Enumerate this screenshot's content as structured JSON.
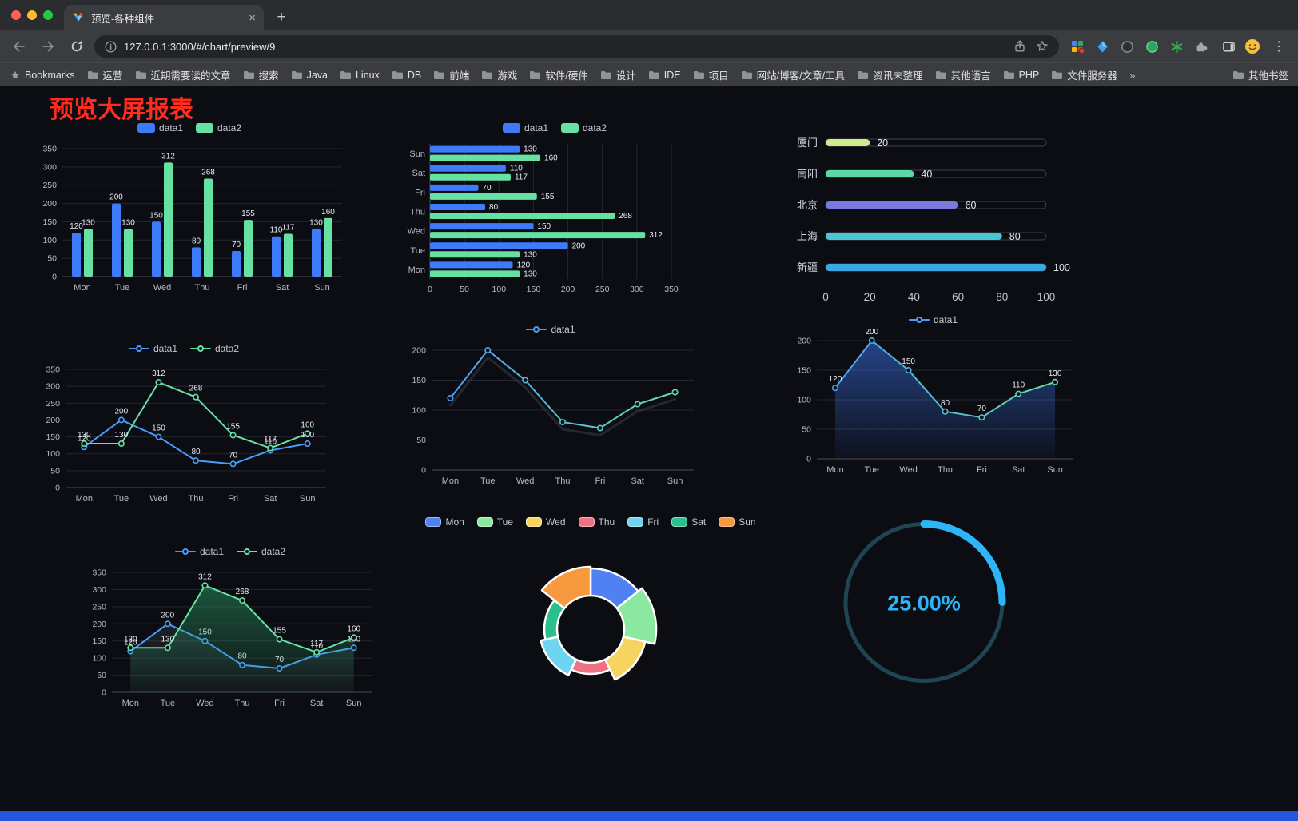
{
  "browser": {
    "tab_title": "预览-各种组件",
    "tab_close": "×",
    "new_tab": "+",
    "url": "127.0.0.1:3000/#/chart/preview/9",
    "menu_dots": "⋮",
    "bookmarks_label": "Bookmarks",
    "bookmark_folders": [
      "运营",
      "近期需要读的文章",
      "搜索",
      "Java",
      "Linux",
      "DB",
      "前端",
      "游戏",
      "软件/硬件",
      "设计",
      "IDE",
      "项目",
      "网站/博客/文章/工具",
      "资讯未整理",
      "其他语言",
      "PHP",
      "文件服务器"
    ],
    "bookmarks_overflow": "»",
    "other_bookmarks": "其他书签"
  },
  "page": {
    "title": "预览大屏报表",
    "title_color": "#ff2d1f",
    "footer_color": "#2356dd"
  },
  "chart_data": [
    {
      "type": "bar",
      "categories": [
        "Mon",
        "Tue",
        "Wed",
        "Thu",
        "Fri",
        "Sat",
        "Sun"
      ],
      "ylim": [
        0,
        350
      ],
      "ytick": 50,
      "legend_position": "top",
      "series": [
        {
          "name": "data1",
          "color": "#3e7bfa",
          "values": [
            120,
            200,
            150,
            80,
            70,
            110,
            130
          ]
        },
        {
          "name": "data2",
          "color": "#67e0a3",
          "values": [
            130,
            130,
            312,
            268,
            155,
            117,
            160
          ]
        }
      ]
    },
    {
      "type": "hbar",
      "categories": [
        "Mon",
        "Tue",
        "Wed",
        "Thu",
        "Fri",
        "Sat",
        "Sun"
      ],
      "xlim": [
        0,
        350
      ],
      "xtick": 50,
      "legend_position": "top",
      "series": [
        {
          "name": "data1",
          "color": "#3e7bfa",
          "values": [
            120,
            200,
            150,
            80,
            70,
            110,
            130
          ]
        },
        {
          "name": "data2",
          "color": "#67e0a3",
          "values": [
            130,
            130,
            312,
            268,
            155,
            117,
            160
          ]
        }
      ]
    },
    {
      "type": "capsule",
      "xlim": [
        0,
        100
      ],
      "xticks": [
        0,
        20,
        40,
        60,
        80,
        100
      ],
      "rows": [
        {
          "label": "厦门",
          "value": 20,
          "color": "#cdeb8b"
        },
        {
          "label": "南阳",
          "value": 40,
          "color": "#5ad8a6"
        },
        {
          "label": "北京",
          "value": 60,
          "color": "#7a79e0"
        },
        {
          "label": "上海",
          "value": 80,
          "color": "#49c5cf"
        },
        {
          "label": "新疆",
          "value": 100,
          "color": "#38a7e4"
        }
      ]
    },
    {
      "type": "line",
      "categories": [
        "Mon",
        "Tue",
        "Wed",
        "Thu",
        "Fri",
        "Sat",
        "Sun"
      ],
      "ylim": [
        0,
        350
      ],
      "ytick": 50,
      "legend_position": "top",
      "series": [
        {
          "name": "data1",
          "color": "#4b9bfa",
          "values": [
            120,
            200,
            150,
            80,
            70,
            110,
            130
          ],
          "labels": true
        },
        {
          "name": "data2",
          "color": "#67e0a3",
          "values": [
            130,
            130,
            312,
            268,
            155,
            117,
            160
          ],
          "labels": true
        }
      ]
    },
    {
      "type": "line",
      "categories": [
        "Mon",
        "Tue",
        "Wed",
        "Thu",
        "Fri",
        "Sat",
        "Sun"
      ],
      "ylim": [
        0,
        200
      ],
      "ytick": 50,
      "legend_position": "top",
      "series": [
        {
          "name": "data1",
          "colors": [
            "#4b9bfa",
            "#67e0a3"
          ],
          "values": [
            120,
            200,
            150,
            80,
            70,
            110,
            130
          ],
          "shadow": true
        }
      ]
    },
    {
      "type": "line",
      "categories": [
        "Mon",
        "Tue",
        "Wed",
        "Thu",
        "Fri",
        "Sat",
        "Sun"
      ],
      "ylim": [
        0,
        200
      ],
      "ytick": 50,
      "legend_position": "top",
      "series": [
        {
          "name": "data1",
          "colors": [
            "#4b9bfa",
            "#67e0a3"
          ],
          "values": [
            120,
            200,
            150,
            80,
            70,
            110,
            130
          ],
          "labels": true,
          "area": "#3e7bfa"
        }
      ]
    },
    {
      "type": "line",
      "categories": [
        "Mon",
        "Tue",
        "Wed",
        "Thu",
        "Fri",
        "Sat",
        "Sun"
      ],
      "ylim": [
        0,
        350
      ],
      "ytick": 50,
      "legend_position": "top",
      "series": [
        {
          "name": "data1",
          "color": "#4b9bfa",
          "values": [
            120,
            200,
            150,
            80,
            70,
            110,
            130
          ],
          "labels": true,
          "area": "#6a7486",
          "area_opacity": 0.3
        },
        {
          "name": "data2",
          "color": "#67e0a3",
          "values": [
            130,
            130,
            312,
            268,
            155,
            117,
            160
          ],
          "labels": true,
          "area": "#2fae6e",
          "area_opacity": 0.5
        }
      ]
    },
    {
      "type": "pie",
      "inner_radius": 42,
      "legend_position": "top",
      "slices": [
        {
          "label": "Mon",
          "color": "#4f81f2",
          "outer": 76
        },
        {
          "label": "Tue",
          "color": "#8ae99f",
          "outer": 82
        },
        {
          "label": "Wed",
          "color": "#f7d35f",
          "outer": 70
        },
        {
          "label": "Thu",
          "color": "#ef7185",
          "outer": 56
        },
        {
          "label": "Fri",
          "color": "#6fd3f2",
          "outer": 64
        },
        {
          "label": "Sat",
          "color": "#2bbf8e",
          "outer": 58
        },
        {
          "label": "Sun",
          "color": "#f6993f",
          "outer": 78
        }
      ]
    },
    {
      "type": "gauge",
      "value": 25,
      "text": "25.00%",
      "color": "#2db5f5",
      "track": "#1d4652"
    }
  ]
}
